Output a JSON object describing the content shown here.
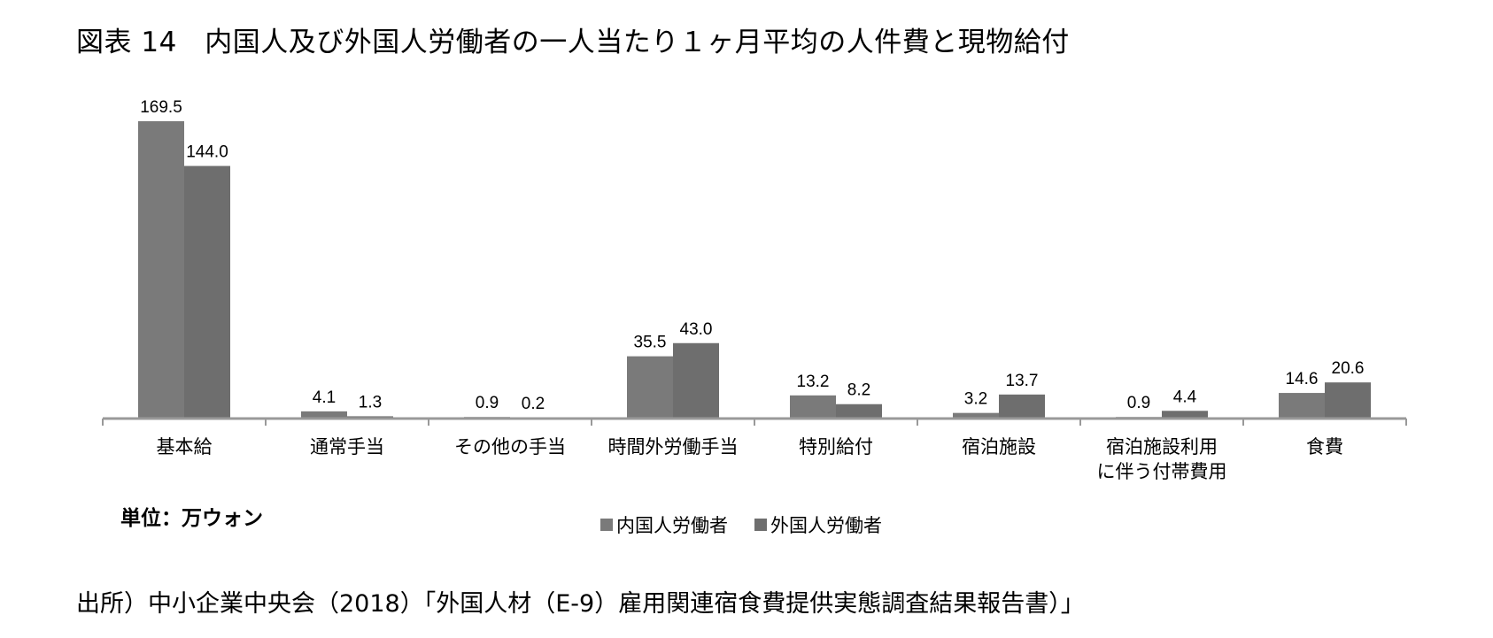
{
  "title": "図表 14　内国人及び外国人労働者の一人当たり１ヶ月平均の人件費と現物給付",
  "unit_label": "単位：万ウォン",
  "source": "出所）中小企業中央会（2018）「外国人材（E-9）雇用関連宿食費提供実態調査結果報告書）」",
  "legend": [
    {
      "label": "内国人労働者",
      "color": "#7a7a7a"
    },
    {
      "label": "外国人労働者",
      "color": "#6e6e6e"
    }
  ],
  "chart_data": {
    "type": "bar",
    "title": "図表 14　内国人及び外国人労働者の一人当たり１ヶ月平均の人件費と現物給付",
    "xlabel": "",
    "ylabel": "単位：万ウォン",
    "ylim": [
      0,
      169.5
    ],
    "grid": false,
    "legend_position": "bottom",
    "categories": [
      [
        "基本給"
      ],
      [
        "通常手当"
      ],
      [
        "その他の手当"
      ],
      [
        "時間外労働手当"
      ],
      [
        "特別給付"
      ],
      [
        "宿泊施設"
      ],
      [
        "宿泊施設利用",
        "に伴う付帯費用"
      ],
      [
        "食費"
      ]
    ],
    "series": [
      {
        "name": "内国人労働者",
        "color": "#7a7a7a",
        "values": [
          169.5,
          4.1,
          0.9,
          35.5,
          13.2,
          3.2,
          0.9,
          14.6
        ],
        "labels": [
          "169.5",
          "4.1",
          "0.9",
          "35.5",
          "13.2",
          "3.2",
          "0.9",
          "14.6"
        ]
      },
      {
        "name": "外国人労働者",
        "color": "#6e6e6e",
        "values": [
          144.0,
          1.3,
          0.2,
          43.0,
          8.2,
          13.7,
          4.4,
          20.6
        ],
        "labels": [
          "144.0",
          "1.3",
          "0.2",
          "43.0",
          "8.2",
          "13.7",
          "4.4",
          "20.6"
        ]
      }
    ]
  }
}
